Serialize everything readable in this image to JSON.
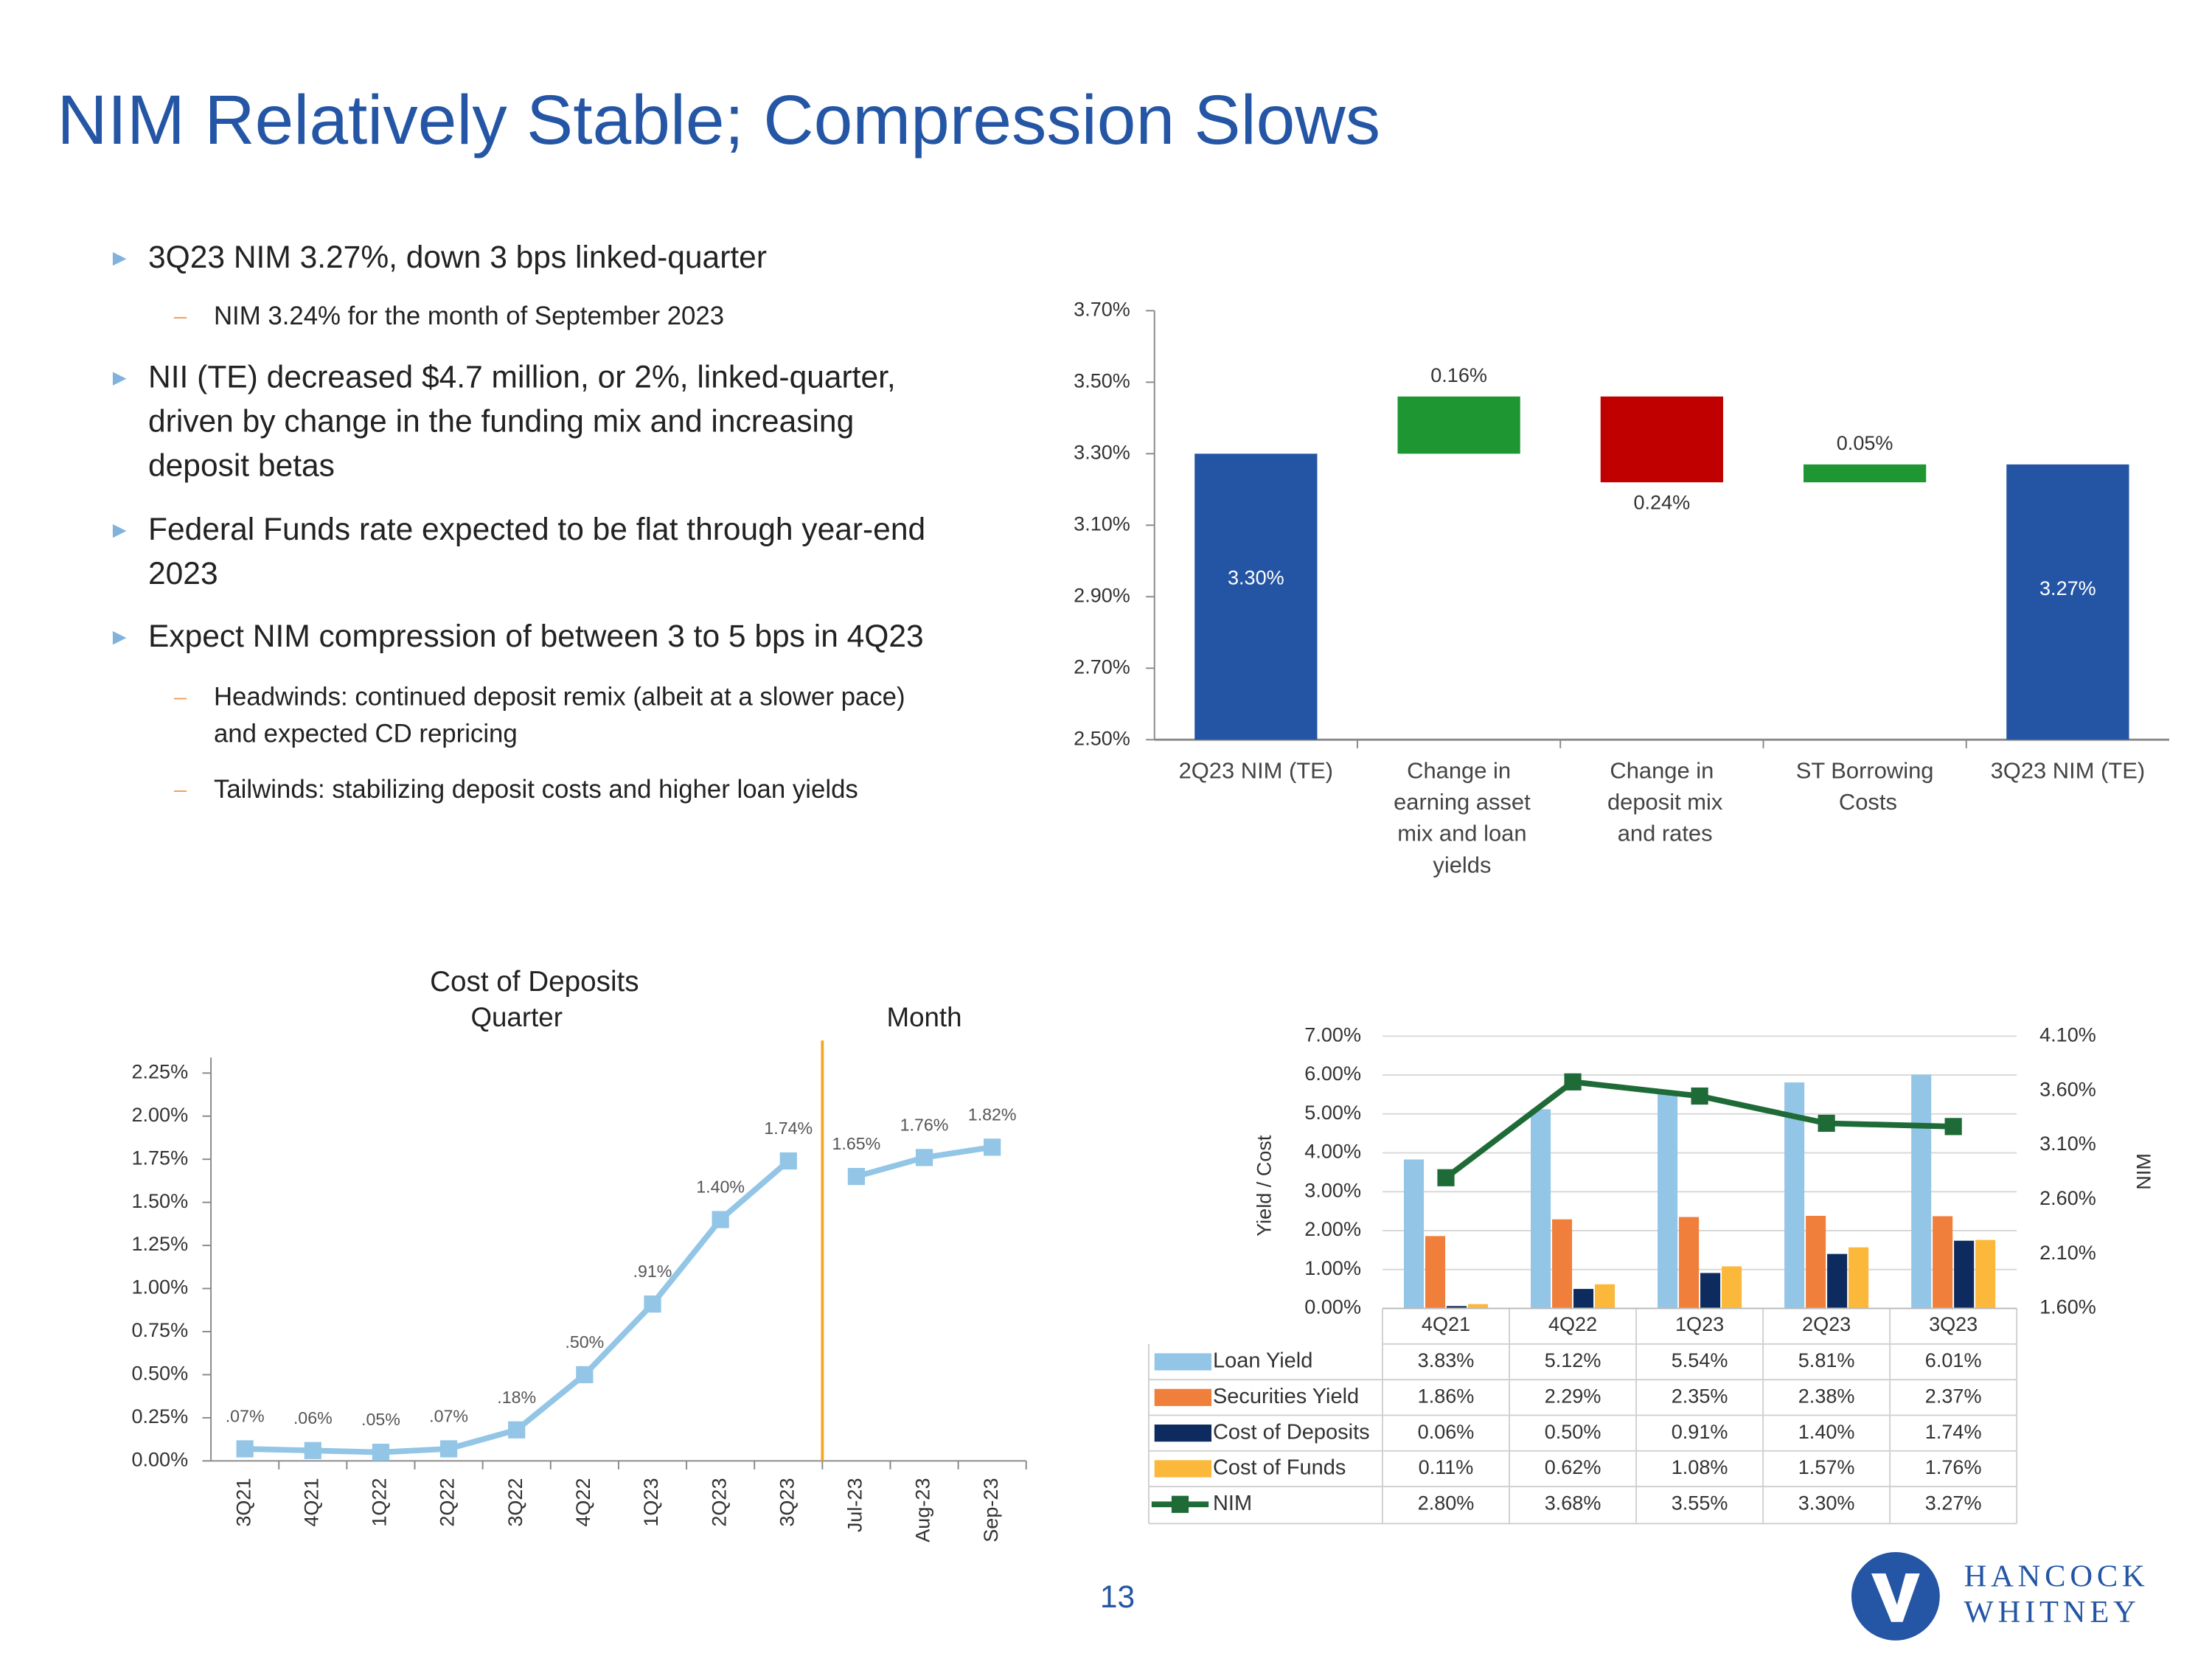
{
  "title": "NIM Relatively Stable; Compression Slows",
  "bullets": [
    {
      "text": [
        "3Q23 NIM 3.27%, down 3 bps linked-quarter"
      ],
      "sub": [
        [
          "NIM 3.24% for the month of September 2023"
        ]
      ]
    },
    {
      "text": [
        "NII (TE) decreased $4.7 million, or 2%, linked-quarter,",
        "driven by change in the funding mix and increasing",
        "deposit betas"
      ],
      "sub": []
    },
    {
      "text": [
        "Federal Funds rate expected to be flat through year-end",
        "2023"
      ],
      "sub": []
    },
    {
      "text": [
        "Expect NIM compression of between 3 to 5 bps in 4Q23"
      ],
      "sub": [
        [
          "Headwinds: continued deposit remix (albeit at a slower pace)",
          "and expected CD repricing"
        ],
        [
          "Tailwinds: stabilizing deposit costs and higher loan yields"
        ]
      ]
    }
  ],
  "page_number": "13",
  "logo": [
    "HANCOCK",
    "WHITNEY"
  ],
  "chart_data": [
    {
      "type": "waterfall",
      "categories": [
        "2Q23 NIM (TE)",
        "Change in earning asset mix and loan yields",
        "Change in deposit mix and rates",
        "ST Borrowing Costs",
        "3Q23 NIM (TE)"
      ],
      "values": [
        3.3,
        0.16,
        -0.24,
        0.05,
        3.27
      ],
      "value_labels": [
        "3.30%",
        "0.16%",
        "0.24%",
        "0.05%",
        "3.27%"
      ],
      "colors": [
        "#2455a4",
        "#1e9632",
        "#c00000",
        "#1e9632",
        "#2455a4"
      ],
      "ylim": [
        2.5,
        3.7
      ],
      "yticks": [
        {
          "value": 2.5,
          "label": "2.50%"
        },
        {
          "value": 2.7,
          "label": "2.70%"
        },
        {
          "value": 2.9,
          "label": "2.90%"
        },
        {
          "value": 3.1,
          "label": "3.10%"
        },
        {
          "value": 3.3,
          "label": "3.30%"
        },
        {
          "value": 3.5,
          "label": "3.50%"
        },
        {
          "value": 3.7,
          "label": "3.70%"
        }
      ]
    },
    {
      "type": "line",
      "title": "Cost of Deposits",
      "categories": [
        "3Q21",
        "4Q21",
        "1Q22",
        "2Q22",
        "3Q22",
        "4Q22",
        "1Q23",
        "2Q23",
        "3Q23",
        "Jul-23",
        "Aug-23",
        "Sep-23"
      ],
      "series": [
        {
          "name": "Quarter",
          "color": "#92c5e6",
          "values": [
            0.07,
            0.06,
            0.05,
            0.07,
            0.18,
            0.5,
            0.91,
            1.4,
            1.74,
            null,
            null,
            null
          ],
          "value_labels": [
            ".07%",
            ".06%",
            ".05%",
            ".07%",
            ".18%",
            ".50%",
            ".91%",
            "1.40%",
            "1.74%",
            null,
            null,
            null
          ]
        },
        {
          "name": "Month",
          "color": "#92c5e6",
          "values": [
            null,
            null,
            null,
            null,
            null,
            null,
            null,
            null,
            null,
            1.65,
            1.76,
            1.82
          ],
          "value_labels": [
            null,
            null,
            null,
            null,
            null,
            null,
            null,
            null,
            null,
            "1.65%",
            "1.76%",
            "1.82%"
          ]
        }
      ],
      "divider_color": "#f5a623",
      "ylim": [
        0,
        2.34
      ],
      "yticks": [
        {
          "value": 0,
          "label": "0.00%"
        },
        {
          "value": 0.25,
          "label": "0.25%"
        },
        {
          "value": 0.5,
          "label": "0.50%"
        },
        {
          "value": 0.75,
          "label": "0.75%"
        },
        {
          "value": 1,
          "label": "1.00%"
        },
        {
          "value": 1.25,
          "label": "1.25%"
        },
        {
          "value": 1.5,
          "label": "1.50%"
        },
        {
          "value": 1.75,
          "label": "1.75%"
        },
        {
          "value": 2,
          "label": "2.00%"
        },
        {
          "value": 2.25,
          "label": "2.25%"
        }
      ]
    },
    {
      "type": "combo",
      "categories": [
        "4Q21",
        "4Q22",
        "1Q23",
        "2Q23",
        "3Q23"
      ],
      "y_label": "Yield / Cost",
      "y2_label": "NIM",
      "series": [
        {
          "name": "Loan Yield",
          "color": "#92c5e6",
          "values": [
            3.83,
            5.12,
            5.54,
            5.81,
            6.01
          ],
          "value_labels": [
            "3.83%",
            "5.12%",
            "5.54%",
            "5.81%",
            "6.01%"
          ]
        },
        {
          "name": "Securities Yield",
          "color": "#f07f3c",
          "values": [
            1.86,
            2.29,
            2.35,
            2.38,
            2.37
          ],
          "value_labels": [
            "1.86%",
            "2.29%",
            "2.35%",
            "2.38%",
            "2.37%"
          ]
        },
        {
          "name": "Cost of Deposits",
          "color": "#0d2b5e",
          "values": [
            0.06,
            0.5,
            0.91,
            1.4,
            1.74
          ],
          "value_labels": [
            "0.06%",
            "0.50%",
            "0.91%",
            "1.40%",
            "1.74%"
          ]
        },
        {
          "name": "Cost of Funds",
          "color": "#fbb83a",
          "values": [
            0.11,
            0.62,
            1.08,
            1.57,
            1.76
          ],
          "value_labels": [
            "0.11%",
            "0.62%",
            "1.08%",
            "1.57%",
            "1.76%"
          ]
        },
        {
          "name": "NIM",
          "color": "#1e6b37",
          "axis": "y2",
          "values": [
            2.8,
            3.68,
            3.55,
            3.3,
            3.27
          ],
          "value_labels": [
            "2.80%",
            "3.68%",
            "3.55%",
            "3.30%",
            "3.27%"
          ]
        }
      ],
      "ylim": [
        0,
        7
      ],
      "yticks": [
        {
          "value": 0,
          "label": "0.00%"
        },
        {
          "value": 1,
          "label": "1.00%"
        },
        {
          "value": 2,
          "label": "2.00%"
        },
        {
          "value": 3,
          "label": "3.00%"
        },
        {
          "value": 4,
          "label": "4.00%"
        },
        {
          "value": 5,
          "label": "5.00%"
        },
        {
          "value": 6,
          "label": "6.00%"
        },
        {
          "value": 7,
          "label": "7.00%"
        }
      ],
      "y2lim": [
        1.6,
        4.1
      ],
      "y2ticks": [
        {
          "value": 1.6,
          "label": "1.60%"
        },
        {
          "value": 2.1,
          "label": "2.10%"
        },
        {
          "value": 2.6,
          "label": "2.60%"
        },
        {
          "value": 3.1,
          "label": "3.10%"
        },
        {
          "value": 3.6,
          "label": "3.60%"
        },
        {
          "value": 4.1,
          "label": "4.10%"
        }
      ]
    }
  ]
}
